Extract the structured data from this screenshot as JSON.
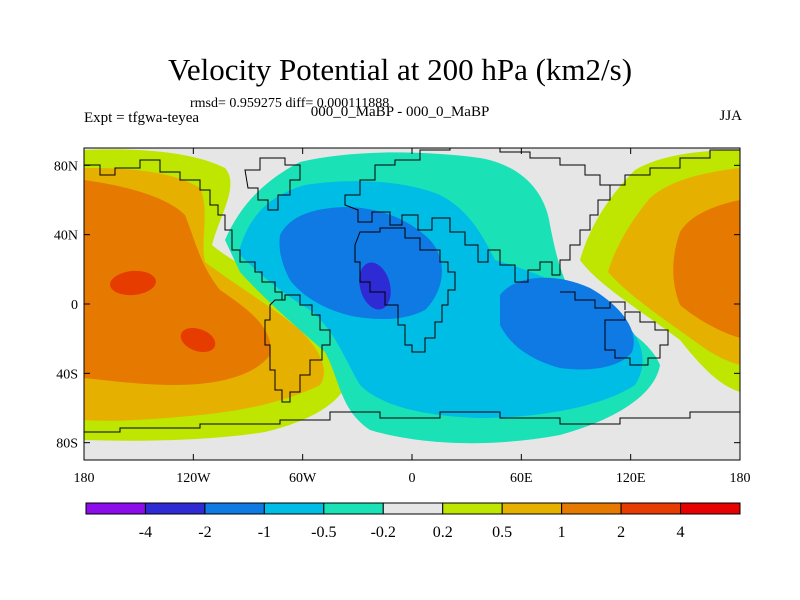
{
  "figure": {
    "title": "Velocity Potential at 200 hPa (km2/s)",
    "stats": "rmsd= 0.959275  diff= 0.000111888",
    "expt": "Expt = tfgwa-teyea",
    "subtitle": "000_0_MaBP - 000_0_MaBP",
    "season": "JJA"
  },
  "axes": {
    "y_ticks": [
      "80N",
      "40N",
      "0",
      "40S",
      "80S"
    ],
    "y_values": [
      80,
      40,
      0,
      -40,
      -80
    ],
    "x_ticks": [
      "180",
      "120W",
      "60W",
      "0",
      "60E",
      "120E",
      "180"
    ],
    "x_values": [
      -180,
      -120,
      -60,
      0,
      60,
      120,
      180
    ]
  },
  "colorbar": {
    "colors": [
      "#8c0dea",
      "#2e2ad4",
      "#0f79e4",
      "#00bde6",
      "#1be1b6",
      "#e6e6e6",
      "#bee600",
      "#e6b000",
      "#e67900",
      "#e63c00",
      "#e60000"
    ],
    "labels": [
      "-4",
      "-2",
      "-1",
      "-0.5",
      "-0.2",
      "0.2",
      "0.5",
      "1",
      "2",
      "4"
    ]
  },
  "palette": {
    "land_line": "#000000",
    "background": "#e6e6e6"
  }
}
